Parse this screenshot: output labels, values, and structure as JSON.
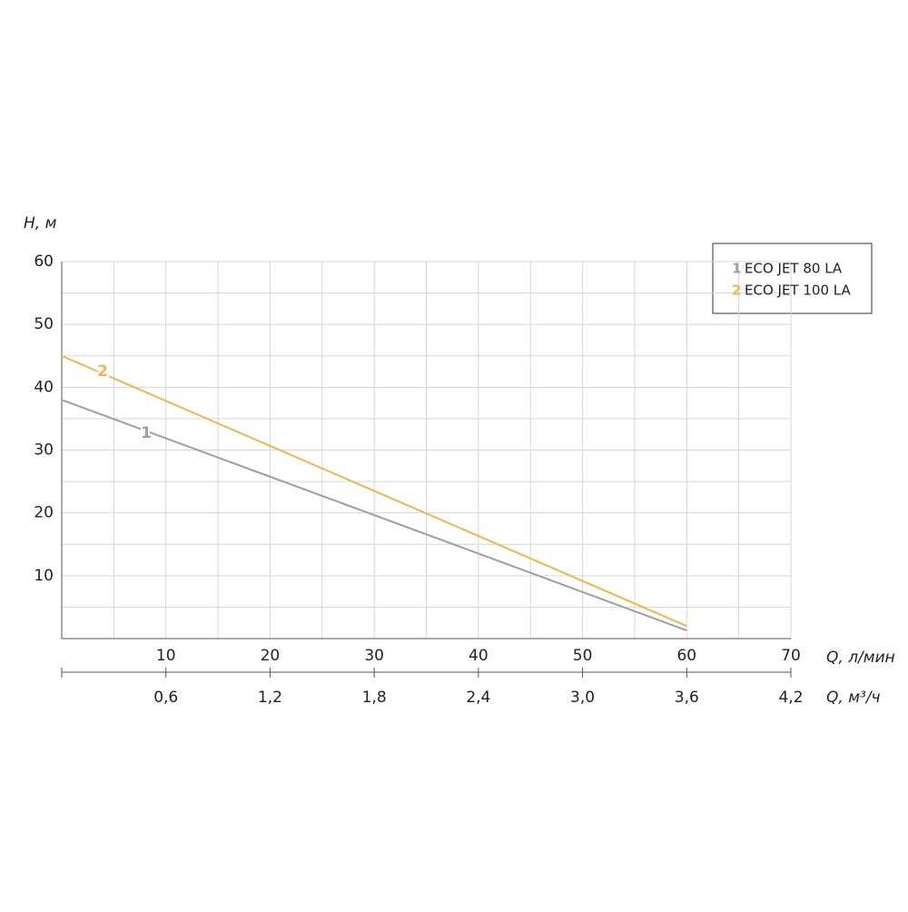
{
  "chart_data": {
    "type": "line",
    "y_label": "H, м",
    "x_label": "Q, л/мин",
    "x2_label": "Q, м³/ч",
    "x": [
      0,
      60
    ],
    "series": [
      {
        "label": "1",
        "name": "ECO JET 80 LA",
        "color": "#9e9e9e",
        "values": [
          38,
          1.3
        ]
      },
      {
        "label": "2",
        "name": "ECO JET 100 LA",
        "color": "#f0b550",
        "values": [
          45,
          2
        ]
      }
    ],
    "xlim": [
      0,
      70
    ],
    "xticks": [
      10,
      20,
      30,
      40,
      50,
      60,
      70
    ],
    "ylim": [
      0,
      60
    ],
    "yticks": [
      10,
      20,
      30,
      40,
      50,
      60
    ],
    "x2lim": [
      0,
      4.2
    ],
    "x2ticks": [
      {
        "value": 0.6,
        "label": "0,6"
      },
      {
        "value": 1.2,
        "label": "1,2"
      },
      {
        "value": 1.8,
        "label": "1,8"
      },
      {
        "value": 2.4,
        "label": "2,4"
      },
      {
        "value": 3.0,
        "label": "3,0"
      },
      {
        "value": 3.6,
        "label": "3,6"
      },
      {
        "value": 4.2,
        "label": "4,2"
      }
    ],
    "grid": true,
    "legend": "top-right"
  }
}
